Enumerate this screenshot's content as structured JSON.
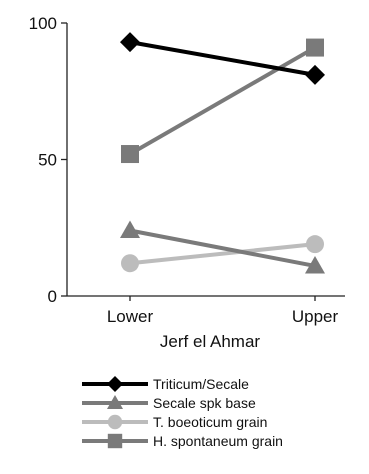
{
  "chart_data": {
    "type": "line",
    "title": "",
    "xlabel": "Jerf el Ahmar",
    "ylabel": "",
    "categories": [
      "Lower",
      "Upper"
    ],
    "ylim": [
      0,
      100
    ],
    "yticks": [
      0,
      50,
      100
    ],
    "grid": false,
    "legend_position": "bottom",
    "series": [
      {
        "name": "Triticum/Secale",
        "values": [
          93,
          81
        ],
        "color": "#000000",
        "marker": "diamond"
      },
      {
        "name": "Secale spk base",
        "values": [
          24,
          11
        ],
        "color": "#7a7a7a",
        "marker": "triangle"
      },
      {
        "name": "T. boeoticum grain",
        "values": [
          12,
          19
        ],
        "color": "#bcbcbc",
        "marker": "circle"
      },
      {
        "name": "H. spontaneum grain",
        "values": [
          52,
          91
        ],
        "color": "#7a7a7a",
        "marker": "square"
      }
    ]
  }
}
